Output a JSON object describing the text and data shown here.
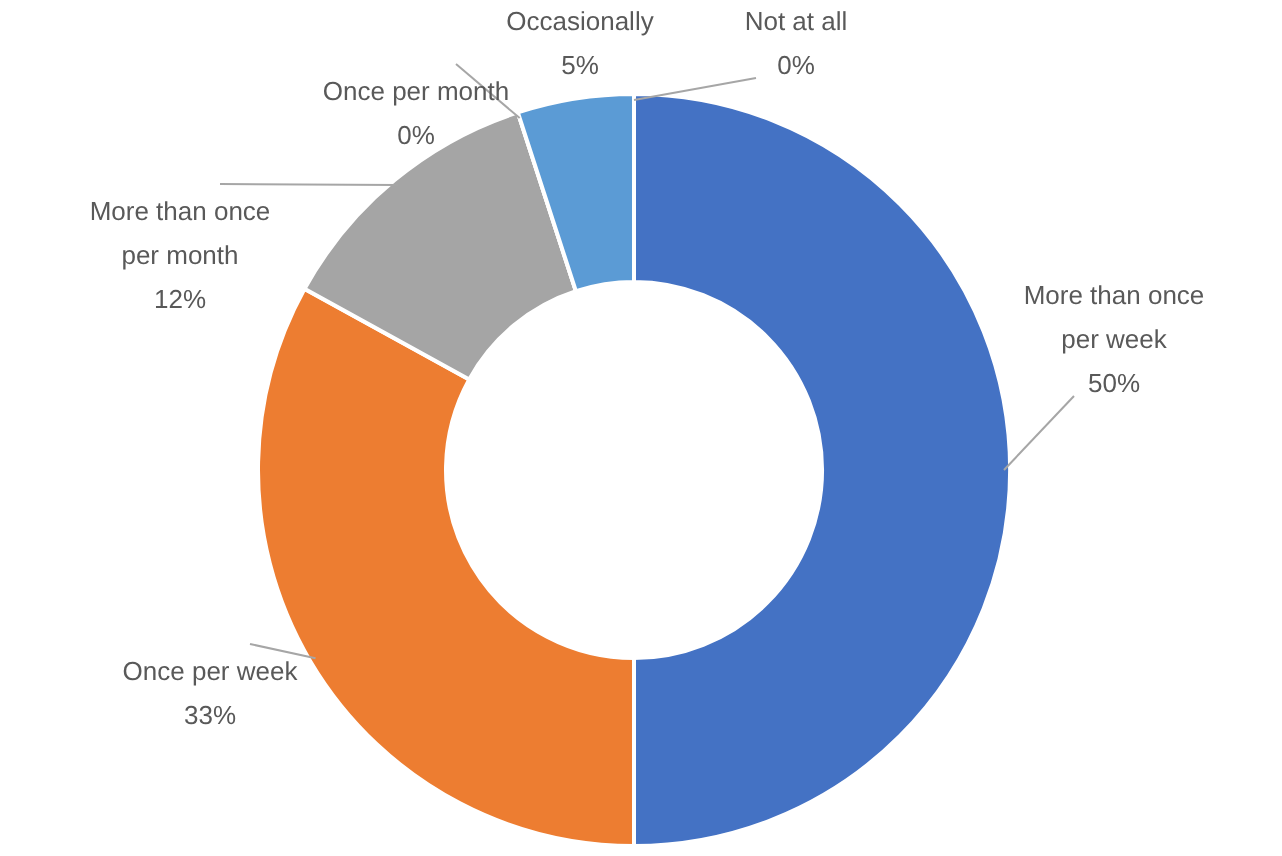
{
  "chart_data": {
    "type": "donut",
    "categories": [
      "More than once per week",
      "Once per week",
      "More than once per month",
      "Once per month",
      "Occasionally",
      "Not at all"
    ],
    "values": [
      50,
      33,
      12,
      0,
      5,
      0
    ],
    "value_labels": [
      "50%",
      "33%",
      "12%",
      "0%",
      "5%",
      "0%"
    ],
    "colors": [
      "#4472c4",
      "#ed7d31",
      "#a5a5a5",
      "#ffc000",
      "#5b9bd5",
      "#264478"
    ]
  }
}
